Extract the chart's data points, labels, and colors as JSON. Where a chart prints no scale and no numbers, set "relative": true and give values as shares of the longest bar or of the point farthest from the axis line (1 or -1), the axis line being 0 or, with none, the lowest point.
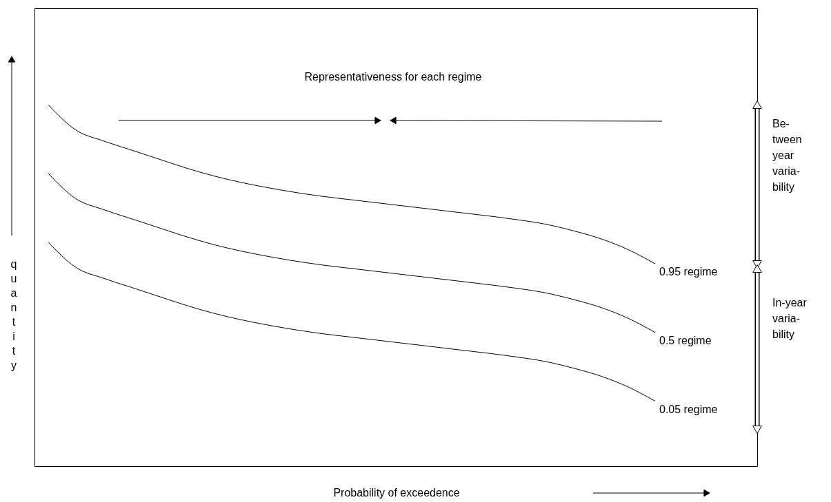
{
  "chart_data": {
    "type": "line",
    "relative": true,
    "xlabel": "Probability of exceedence",
    "ylabel": "quantity",
    "categories": [
      null,
      null,
      null,
      null,
      null,
      null,
      null,
      null,
      null,
      null,
      null,
      null,
      null,
      null,
      null,
      null,
      null,
      null,
      null,
      null,
      null,
      null,
      null
    ],
    "series": [
      {
        "name": "0.95 regime",
        "color": "#000000",
        "values": [
          1,
          0.93,
          0.9,
          0.875,
          0.85,
          0.825,
          0.803,
          0.785,
          0.77,
          0.757,
          0.746,
          0.737,
          0.728,
          0.719,
          0.71,
          0.701,
          0.692,
          0.682,
          0.67,
          0.652,
          0.63,
          0.6,
          0.56
        ]
      },
      {
        "name": "0.5 regime",
        "color": "#000000",
        "values": [
          0.81,
          0.74,
          0.71,
          0.685,
          0.66,
          0.635,
          0.613,
          0.595,
          0.58,
          0.567,
          0.556,
          0.547,
          0.538,
          0.529,
          0.52,
          0.511,
          0.502,
          0.492,
          0.48,
          0.462,
          0.44,
          0.41,
          0.37
        ]
      },
      {
        "name": "0.05 regime",
        "color": "#000000",
        "values": [
          0.62,
          0.55,
          0.52,
          0.495,
          0.47,
          0.445,
          0.423,
          0.405,
          0.39,
          0.377,
          0.366,
          0.357,
          0.348,
          0.339,
          0.33,
          0.321,
          0.312,
          0.302,
          0.29,
          0.272,
          0.25,
          0.22,
          0.18
        ]
      }
    ],
    "annotations": [
      "Representativeness for each regime",
      "Be-\ntween\nyear\nvaria-\nbility",
      "In-year\nvaria-\nbility"
    ]
  }
}
